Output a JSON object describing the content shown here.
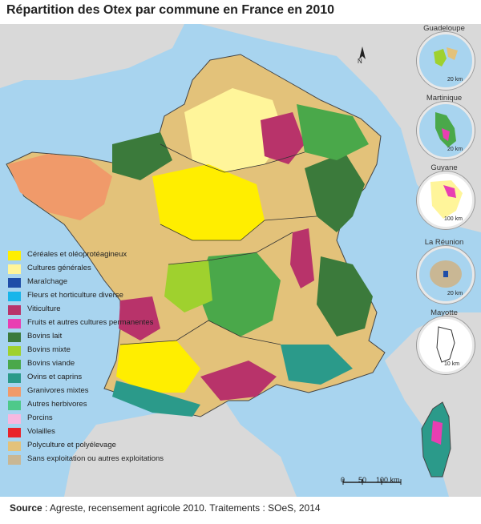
{
  "title": "Répartition des Otex par commune en France en 2010",
  "legend": [
    {
      "label": "Céréales et oléoprotéagineux",
      "color": "#ffee00"
    },
    {
      "label": "Cultures générales",
      "color": "#fff59a"
    },
    {
      "label": "Maraîchage",
      "color": "#1f4ea8"
    },
    {
      "label": "Fleurs et horticulture diverse",
      "color": "#18b5ea"
    },
    {
      "label": "Viticulture",
      "color": "#b8336a"
    },
    {
      "label": "Fruits et autres cultures permanentes",
      "color": "#e83eb2"
    },
    {
      "label": "Bovins lait",
      "color": "#3b7a3b"
    },
    {
      "label": "Bovins mixte",
      "color": "#9fd12e"
    },
    {
      "label": "Bovins viande",
      "color": "#4aa84a"
    },
    {
      "label": "Ovins et caprins",
      "color": "#2b9a8a"
    },
    {
      "label": "Granivores mixtes",
      "color": "#f09a6a"
    },
    {
      "label": "Autres herbivores",
      "color": "#4ec98a"
    },
    {
      "label": "Porcins",
      "color": "#f7b8e0"
    },
    {
      "label": "Volailles",
      "color": "#e8232a"
    },
    {
      "label": "Polyculture et polyélevage",
      "color": "#e3c27a"
    },
    {
      "label": "Sans exploitation ou autres exploitations",
      "color": "#c9b794"
    }
  ],
  "dom": [
    {
      "name": "Guadeloupe",
      "scale": "20 km"
    },
    {
      "name": "Martinique",
      "scale": "20 km"
    },
    {
      "name": "Guyane",
      "scale": "100 km"
    },
    {
      "name": "La Réunion",
      "scale": "20 km"
    },
    {
      "name": "Mayotte",
      "scale": "10 km"
    }
  ],
  "scalebar": {
    "t0": "0",
    "t1": "50",
    "t2": "100 km"
  },
  "north": "N",
  "source": {
    "label": "Source",
    "text": " : Agreste, recensement agricole 2010. Traitements : SOeS, 2014"
  }
}
